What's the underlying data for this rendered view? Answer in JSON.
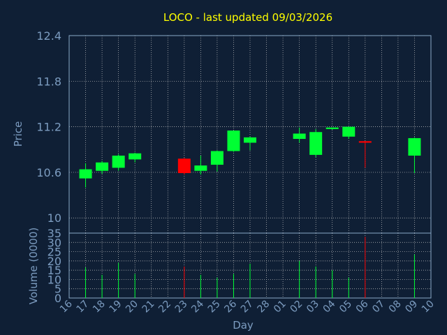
{
  "chart_data": {
    "type": "candlestick",
    "title": "LOCO - last updated 09/03/2026",
    "xlabel": "Day",
    "price_panel": {
      "ylabel": "Price",
      "ylim": [
        9.8,
        12.4
      ],
      "yticks": [
        "10",
        "10.6",
        "11.2",
        "11.8",
        "12.4"
      ],
      "grid": true
    },
    "volume_panel": {
      "ylabel": "Volume (0000)",
      "ylim": [
        0,
        35
      ],
      "yticks": [
        "0",
        "5",
        "10",
        "15",
        "20",
        "25",
        "30",
        "35"
      ],
      "grid": true
    },
    "x_tick_labels": [
      "16",
      "17",
      "18",
      "19",
      "20",
      "21",
      "22",
      "23",
      "24",
      "25",
      "26",
      "27",
      "28",
      "01",
      "02",
      "03",
      "04",
      "05",
      "06",
      "07",
      "08",
      "09",
      "10"
    ],
    "candles": [
      {
        "day": "17",
        "open": 10.52,
        "high": 10.72,
        "low": 10.4,
        "close": 10.64,
        "volume": 16.5
      },
      {
        "day": "18",
        "open": 10.62,
        "high": 10.75,
        "low": 10.58,
        "close": 10.73,
        "volume": 12.5
      },
      {
        "day": "19",
        "open": 10.66,
        "high": 10.84,
        "low": 10.62,
        "close": 10.82,
        "volume": 19.0
      },
      {
        "day": "20",
        "open": 10.77,
        "high": 10.86,
        "low": 10.73,
        "close": 10.85,
        "volume": 13.0
      },
      {
        "day": "23",
        "open": 10.78,
        "high": 10.79,
        "low": 10.57,
        "close": 10.59,
        "volume": 17.0
      },
      {
        "day": "24",
        "open": 10.62,
        "high": 10.82,
        "low": 10.57,
        "close": 10.69,
        "volume": 12.5
      },
      {
        "day": "25",
        "open": 10.7,
        "high": 10.89,
        "low": 10.61,
        "close": 10.88,
        "volume": 11.0
      },
      {
        "day": "26",
        "open": 10.88,
        "high": 11.15,
        "low": 10.87,
        "close": 11.15,
        "volume": 13.0
      },
      {
        "day": "27",
        "open": 10.99,
        "high": 11.07,
        "low": 10.89,
        "close": 11.06,
        "volume": 18.5
      },
      {
        "day": "02",
        "open": 11.04,
        "high": 11.19,
        "low": 10.99,
        "close": 11.11,
        "volume": 20.0
      },
      {
        "day": "03",
        "open": 10.83,
        "high": 11.17,
        "low": 10.8,
        "close": 11.13,
        "volume": 17.0
      },
      {
        "day": "04",
        "open": 11.17,
        "high": 11.19,
        "low": 11.16,
        "close": 11.19,
        "volume": 15.0
      },
      {
        "day": "05",
        "open": 11.07,
        "high": 11.2,
        "low": 11.04,
        "close": 11.2,
        "volume": 11.0
      },
      {
        "day": "06",
        "open": 11.01,
        "high": 11.01,
        "low": 10.66,
        "close": 10.99,
        "volume": 33.0
      },
      {
        "day": "09",
        "open": 10.82,
        "high": 11.06,
        "low": 10.59,
        "close": 11.05,
        "volume": 23.5
      }
    ],
    "colors": {
      "background": "#0f1f35",
      "frame": "#8aa8c8",
      "grid": "#c8c8c8",
      "title": "#ffff00",
      "axis_text": "#7c9cc0",
      "up": "#00ff33",
      "down": "#ff0000"
    }
  }
}
